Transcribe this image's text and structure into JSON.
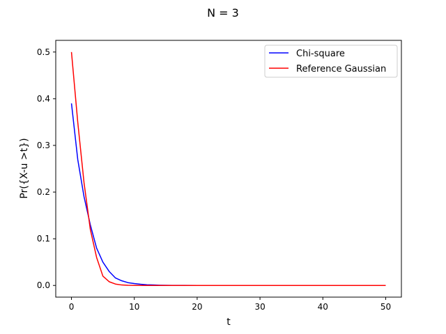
{
  "chart_data": {
    "type": "line",
    "title": "N = 3",
    "xlabel": "t",
    "ylabel": "Pr({X-u >t})",
    "xlim": [
      -2.5,
      52.5
    ],
    "ylim": [
      -0.025,
      0.525
    ],
    "xticks": [
      0,
      10,
      20,
      30,
      40,
      50
    ],
    "yticks": [
      0.0,
      0.1,
      0.2,
      0.3,
      0.4,
      0.5
    ],
    "xtick_labels": [
      "0",
      "10",
      "20",
      "30",
      "40",
      "50"
    ],
    "ytick_labels": [
      "0.0",
      "0.1",
      "0.2",
      "0.3",
      "0.4",
      "0.5"
    ],
    "legend_position": "top-right",
    "grid": false,
    "series": [
      {
        "name": "Chi-square",
        "color": "#0000ff",
        "x": [
          0,
          1,
          2,
          3,
          4,
          5,
          6,
          7,
          8,
          9,
          10,
          11,
          12,
          13,
          14,
          15,
          16,
          18,
          20,
          25,
          30,
          35,
          40,
          45,
          50
        ],
        "y": [
          0.39,
          0.27,
          0.19,
          0.13,
          0.08,
          0.05,
          0.03,
          0.016,
          0.01,
          0.006,
          0.004,
          0.0025,
          0.0015,
          0.001,
          0.0006,
          0.0004,
          0.0002,
          0.0001,
          0,
          0,
          0,
          0,
          0,
          0,
          0
        ]
      },
      {
        "name": "Reference Gaussian",
        "color": "#ff0000",
        "x": [
          0,
          1,
          2,
          3,
          4,
          5,
          6,
          7,
          8,
          9,
          10,
          12,
          14,
          16,
          20,
          25,
          30,
          35,
          40,
          45,
          50
        ],
        "y": [
          0.5,
          0.35,
          0.22,
          0.12,
          0.06,
          0.02,
          0.008,
          0.003,
          0.001,
          0.0003,
          0.0001,
          0,
          0,
          0,
          0,
          0,
          0,
          0,
          0,
          0,
          0
        ]
      }
    ]
  }
}
